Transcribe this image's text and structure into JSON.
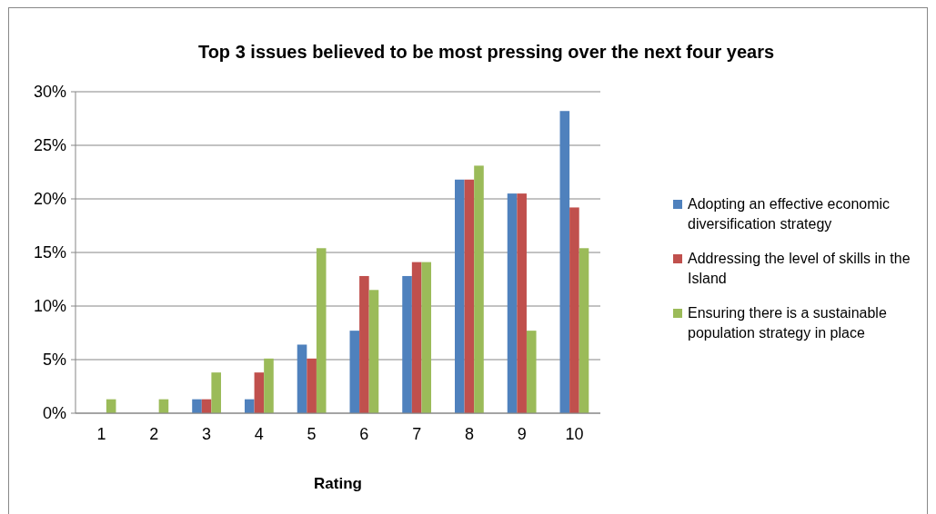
{
  "chart_data": {
    "type": "bar",
    "title": "Top 3 issues believed to be most pressing over the next four years",
    "xlabel": "Rating",
    "categories": [
      "1",
      "2",
      "3",
      "4",
      "5",
      "6",
      "7",
      "8",
      "9",
      "10"
    ],
    "series": [
      {
        "name": "Adopting an effective economic diversification strategy",
        "color": "#4f81bd",
        "values": [
          0,
          0,
          1.3,
          1.3,
          6.4,
          7.7,
          12.8,
          21.8,
          20.5,
          28.2
        ]
      },
      {
        "name": "Addressing the level of skills in the Island",
        "color": "#c0504d",
        "values": [
          0,
          0,
          1.3,
          3.8,
          5.1,
          12.8,
          14.1,
          21.8,
          20.5,
          19.2
        ]
      },
      {
        "name": "Ensuring there is a sustainable population strategy in place",
        "color": "#9bbb59",
        "values": [
          1.3,
          1.3,
          3.8,
          5.1,
          15.4,
          11.5,
          14.1,
          23.1,
          7.7,
          15.4
        ]
      }
    ],
    "ylim": [
      0,
      30
    ],
    "yticks": [
      {
        "value": 0,
        "label": "0%"
      },
      {
        "value": 5,
        "label": "5%"
      },
      {
        "value": 10,
        "label": "10%"
      },
      {
        "value": 15,
        "label": "15%"
      },
      {
        "value": 20,
        "label": "20%"
      },
      {
        "value": 25,
        "label": "25%"
      },
      {
        "value": 30,
        "label": "30%"
      }
    ],
    "grid": "y",
    "legend": "right"
  }
}
